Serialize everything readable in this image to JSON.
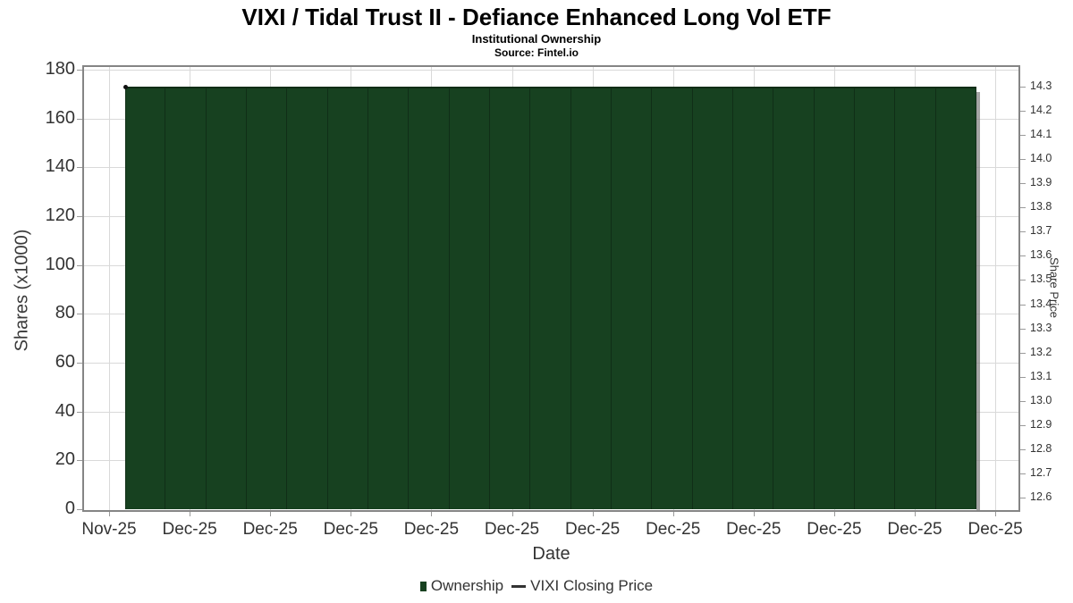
{
  "chart_data": {
    "type": "bar",
    "title": "VIXI / Tidal Trust II - Defiance Enhanced Long Vol ETF",
    "subtitle": "Institutional Ownership",
    "source": "Source: Fintel.io",
    "xlabel": "Date",
    "ylabel_left": "Shares (x1000)",
    "ylabel_right": "Share Price",
    "x_tick_labels": [
      "Nov-25",
      "Dec-25",
      "Dec-25",
      "Dec-25",
      "Dec-25",
      "Dec-25",
      "Dec-25",
      "Dec-25",
      "Dec-25",
      "Dec-25",
      "Dec-25",
      "Dec-25"
    ],
    "axis_left": {
      "min": 0,
      "max": 180,
      "tick_step": 20,
      "ticks": [
        180,
        160,
        140,
        120,
        100,
        80,
        60,
        40,
        20,
        0
      ]
    },
    "axis_right": {
      "min": 12.6,
      "max": 14.3,
      "tick_step": 0.1,
      "ticks": [
        "14.3",
        "14.2",
        "14.1",
        "14.0",
        "13.9",
        "13.8",
        "13.7",
        "13.6",
        "13.5",
        "13.4",
        "13.3",
        "13.2",
        "13.1",
        "13.0",
        "12.9",
        "12.8",
        "12.7",
        "12.6"
      ]
    },
    "grid": true,
    "legend_position": "bottom",
    "series": [
      {
        "name": "Ownership",
        "type": "column",
        "axis": "left",
        "color": "#174120",
        "values": [
          173,
          173,
          173,
          173,
          173,
          173,
          173,
          173,
          173,
          173,
          173,
          173,
          173,
          173,
          173,
          173,
          173,
          173,
          173,
          173,
          173
        ]
      },
      {
        "name": "VIXI Closing Price",
        "type": "line",
        "axis": "right",
        "color": "#111111",
        "visible_points": [
          {
            "index": 0,
            "value": 14.3
          }
        ]
      }
    ]
  }
}
